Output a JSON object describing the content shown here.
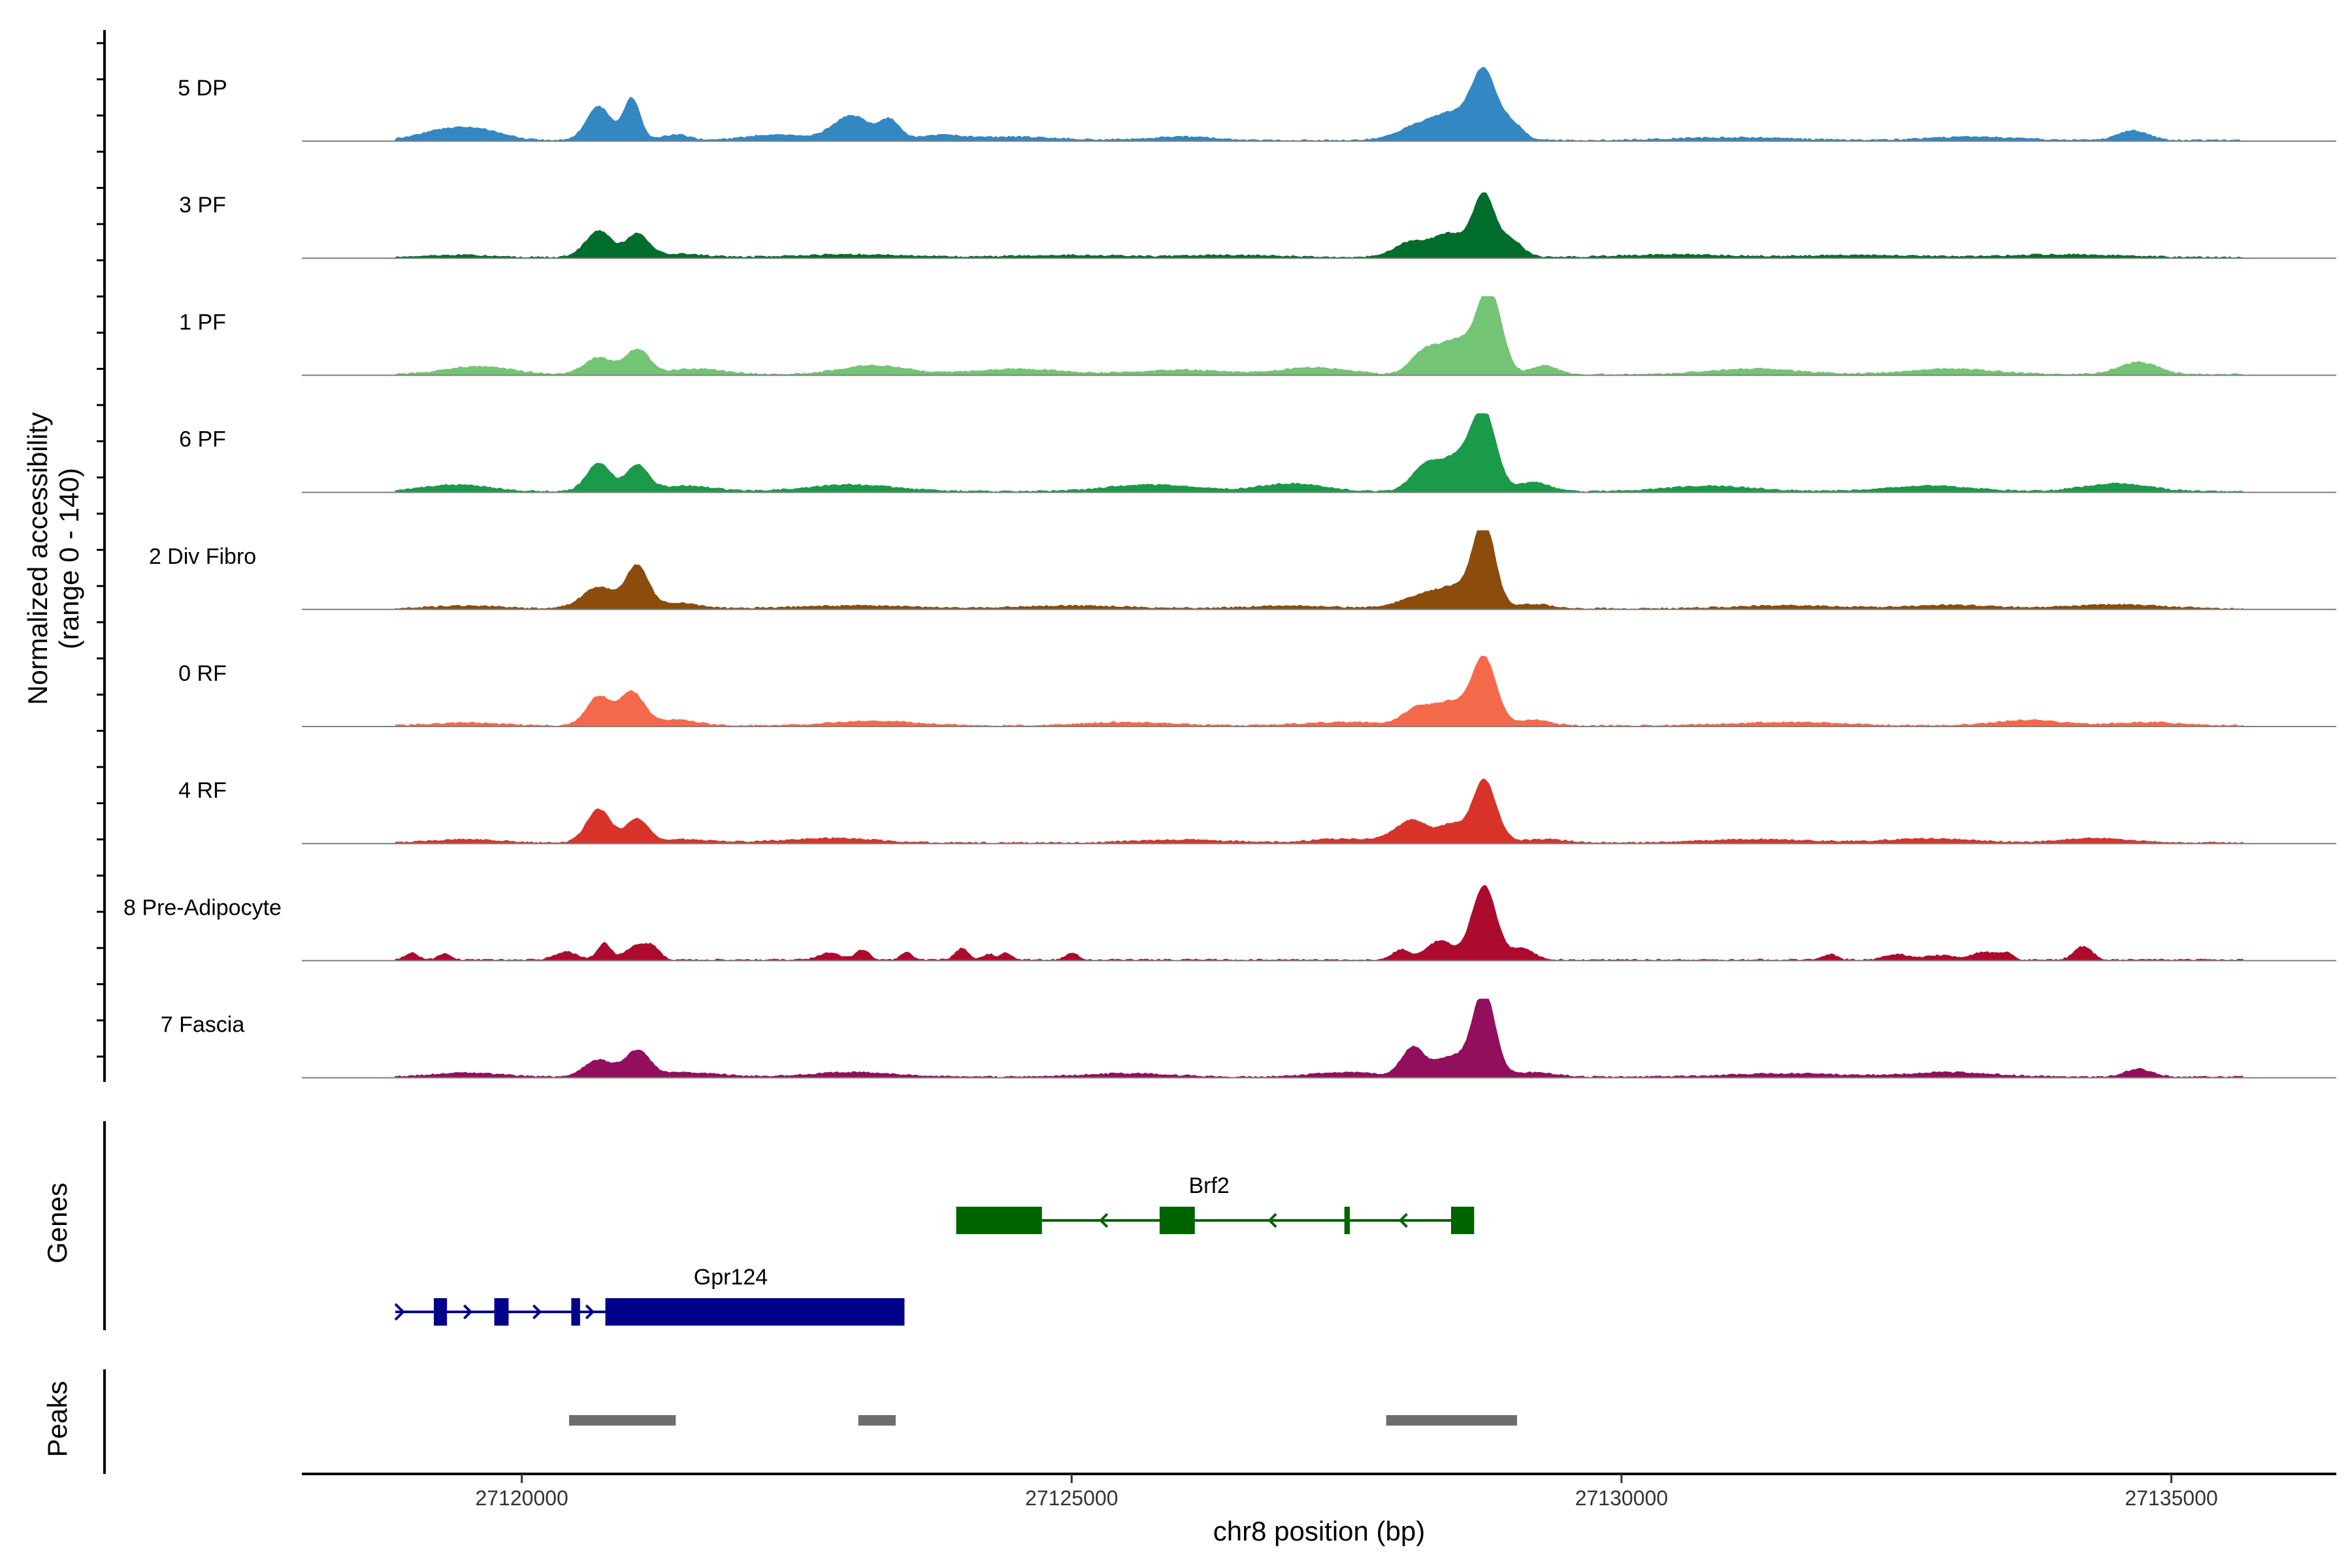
{
  "chart_data": {
    "type": "area",
    "title": "",
    "ylabel_line1": "Normalized accessibility",
    "ylabel_line2": "(range 0 - 140)",
    "xlabel": "chr8 position (bp)",
    "xlim": [
      27118000,
      27136500
    ],
    "ylim": [
      0,
      140
    ],
    "x_ticks": [
      27120000,
      27125000,
      27130000,
      27135000
    ],
    "x_tick_labels": [
      "27120000",
      "27125000",
      "27130000",
      "27135000"
    ],
    "track_x_range": [
      27118850,
      27135650
    ],
    "tracks": [
      {
        "name": "5 DP",
        "color": "#3387C3",
        "peaks": [
          [
            27119350,
            20,
            260
          ],
          [
            27119700,
            10,
            200
          ],
          [
            27120700,
            60,
            110
          ],
          [
            27121000,
            75,
            75
          ],
          [
            27121400,
            10,
            120
          ],
          [
            27122300,
            10,
            250
          ],
          [
            27123000,
            44,
            170
          ],
          [
            27123350,
            33,
            90
          ],
          [
            27123800,
            8,
            200
          ],
          [
            27124500,
            6,
            400
          ],
          [
            27126000,
            6,
            300
          ],
          [
            27128200,
            30,
            200
          ],
          [
            27128500,
            38,
            150
          ],
          [
            27128750,
            118,
            110
          ],
          [
            27129000,
            30,
            100
          ],
          [
            27131000,
            5,
            500
          ],
          [
            27133200,
            6,
            400
          ],
          [
            27134650,
            17,
            140
          ]
        ]
      },
      {
        "name": "3 PF",
        "color": "#006D2C",
        "peaks": [
          [
            27119400,
            4,
            300
          ],
          [
            27120700,
            47,
            120
          ],
          [
            27121050,
            40,
            100
          ],
          [
            27121400,
            6,
            250
          ],
          [
            27123000,
            5,
            500
          ],
          [
            27125000,
            4,
            500
          ],
          [
            27126500,
            4,
            400
          ],
          [
            27128100,
            28,
            160
          ],
          [
            27128450,
            40,
            140
          ],
          [
            27128750,
            110,
            100
          ],
          [
            27129000,
            30,
            100
          ],
          [
            27130500,
            5,
            500
          ],
          [
            27132200,
            4,
            500
          ],
          [
            27134000,
            5,
            500
          ]
        ]
      },
      {
        "name": "1 PF",
        "color": "#74C476",
        "peaks": [
          [
            27119600,
            14,
            300
          ],
          [
            27120700,
            30,
            130
          ],
          [
            27121050,
            44,
            110
          ],
          [
            27121600,
            10,
            250
          ],
          [
            27123200,
            16,
            300
          ],
          [
            27124500,
            10,
            400
          ],
          [
            27126000,
            8,
            400
          ],
          [
            27127200,
            12,
            300
          ],
          [
            27128200,
            36,
            120
          ],
          [
            27128500,
            60,
            160
          ],
          [
            27128800,
            144,
            110
          ],
          [
            27129300,
            16,
            120
          ],
          [
            27131200,
            10,
            400
          ],
          [
            27133000,
            10,
            400
          ],
          [
            27134700,
            22,
            180
          ]
        ]
      },
      {
        "name": "6 PF",
        "color": "#1B9A4A",
        "peaks": [
          [
            27119400,
            12,
            300
          ],
          [
            27120700,
            50,
            110
          ],
          [
            27121050,
            46,
            100
          ],
          [
            27121500,
            10,
            250
          ],
          [
            27123000,
            12,
            400
          ],
          [
            27125700,
            12,
            400
          ],
          [
            27127000,
            14,
            300
          ],
          [
            27128200,
            40,
            120
          ],
          [
            27128500,
            60,
            160
          ],
          [
            27128750,
            132,
            110
          ],
          [
            27129200,
            16,
            150
          ],
          [
            27130800,
            10,
            400
          ],
          [
            27132800,
            10,
            400
          ],
          [
            27134500,
            14,
            300
          ]
        ]
      },
      {
        "name": "2 Div Fibro",
        "color": "#8B4C0C",
        "peaks": [
          [
            27119500,
            5,
            300
          ],
          [
            27120700,
            38,
            150
          ],
          [
            27121050,
            74,
            100
          ],
          [
            27121400,
            10,
            200
          ],
          [
            27123000,
            5,
            500
          ],
          [
            27125000,
            5,
            500
          ],
          [
            27127000,
            5,
            400
          ],
          [
            27128200,
            24,
            200
          ],
          [
            27128500,
            30,
            150
          ],
          [
            27128750,
            150,
            100
          ],
          [
            27129200,
            8,
            150
          ],
          [
            27131500,
            5,
            500
          ],
          [
            27133000,
            6,
            400
          ],
          [
            27134500,
            7,
            400
          ]
        ]
      },
      {
        "name": "0 RF",
        "color": "#F4694A",
        "peaks": [
          [
            27119500,
            5,
            300
          ],
          [
            27120700,
            52,
            110
          ],
          [
            27121000,
            59,
            110
          ],
          [
            27121400,
            10,
            200
          ],
          [
            27123200,
            8,
            400
          ],
          [
            27125500,
            6,
            400
          ],
          [
            27127500,
            6,
            400
          ],
          [
            27128150,
            30,
            130
          ],
          [
            27128450,
            40,
            140
          ],
          [
            27128750,
            120,
            110
          ],
          [
            27129200,
            10,
            150
          ],
          [
            27131500,
            6,
            500
          ],
          [
            27133700,
            10,
            300
          ],
          [
            27134800,
            6,
            300
          ]
        ]
      },
      {
        "name": "4 RF",
        "color": "#D83229",
        "peaks": [
          [
            27119500,
            6,
            300
          ],
          [
            27120700,
            60,
            110
          ],
          [
            27121050,
            42,
            100
          ],
          [
            27121500,
            6,
            250
          ],
          [
            27122800,
            8,
            400
          ],
          [
            27126000,
            5,
            400
          ],
          [
            27127500,
            7,
            300
          ],
          [
            27128100,
            40,
            150
          ],
          [
            27128450,
            30,
            100
          ],
          [
            27128750,
            112,
            110
          ],
          [
            27129300,
            6,
            200
          ],
          [
            27131200,
            6,
            500
          ],
          [
            27132800,
            7,
            400
          ],
          [
            27134300,
            8,
            300
          ]
        ]
      },
      {
        "name": "8 Pre-Adipocyte",
        "color": "#AD0B2E",
        "peaks": [
          [
            27119000,
            12,
            60
          ],
          [
            27119300,
            10,
            60
          ],
          [
            27120400,
            14,
            100
          ],
          [
            27120750,
            30,
            60
          ],
          [
            27121050,
            26,
            100
          ],
          [
            27121200,
            18,
            60
          ],
          [
            27122800,
            12,
            100
          ],
          [
            27123100,
            18,
            60
          ],
          [
            27123500,
            14,
            50
          ],
          [
            27124000,
            20,
            60
          ],
          [
            27124250,
            10,
            50
          ],
          [
            27124400,
            12,
            50
          ],
          [
            27125000,
            12,
            60
          ],
          [
            27128000,
            18,
            80
          ],
          [
            27128350,
            34,
            120
          ],
          [
            27128750,
            132,
            110
          ],
          [
            27129100,
            20,
            100
          ],
          [
            27131900,
            10,
            60
          ],
          [
            27132500,
            10,
            100
          ],
          [
            27132900,
            8,
            150
          ],
          [
            27133300,
            14,
            100
          ],
          [
            27133500,
            12,
            60
          ],
          [
            27134200,
            24,
            80
          ]
        ]
      },
      {
        "name": "7 Fascia",
        "color": "#930E5D",
        "peaks": [
          [
            27119500,
            7,
            300
          ],
          [
            27120700,
            30,
            130
          ],
          [
            27121050,
            45,
            110
          ],
          [
            27121500,
            8,
            300
          ],
          [
            27123000,
            8,
            400
          ],
          [
            27125500,
            6,
            400
          ],
          [
            27127500,
            8,
            300
          ],
          [
            27128100,
            50,
            100
          ],
          [
            27128450,
            36,
            160
          ],
          [
            27128750,
            150,
            100
          ],
          [
            27129200,
            8,
            200
          ],
          [
            27131500,
            6,
            500
          ],
          [
            27133000,
            8,
            400
          ],
          [
            27134700,
            14,
            120
          ]
        ]
      }
    ],
    "genes": [
      {
        "name": "Brf2",
        "color": "#006400",
        "strand": "-",
        "row": 1,
        "start": 27123950,
        "end": 27128660,
        "exons": [
          [
            27123950,
            27124730
          ],
          [
            27125800,
            27126120
          ],
          [
            27127480,
            27127530
          ],
          [
            27128450,
            27128660
          ]
        ]
      },
      {
        "name": "Gpr124",
        "color": "#00008B",
        "strand": "+",
        "row": 2,
        "start": 27118850,
        "end": 27123480,
        "exons": [
          [
            27119200,
            27119320
          ],
          [
            27119750,
            27119880
          ],
          [
            27120450,
            27120530
          ],
          [
            27120760,
            27123480
          ]
        ]
      }
    ],
    "peaks_track": [
      [
        27120430,
        27121400
      ],
      [
        27123060,
        27123400
      ],
      [
        27127860,
        27129050
      ]
    ],
    "panel_labels": {
      "genes": "Genes",
      "peaks": "Peaks"
    }
  }
}
